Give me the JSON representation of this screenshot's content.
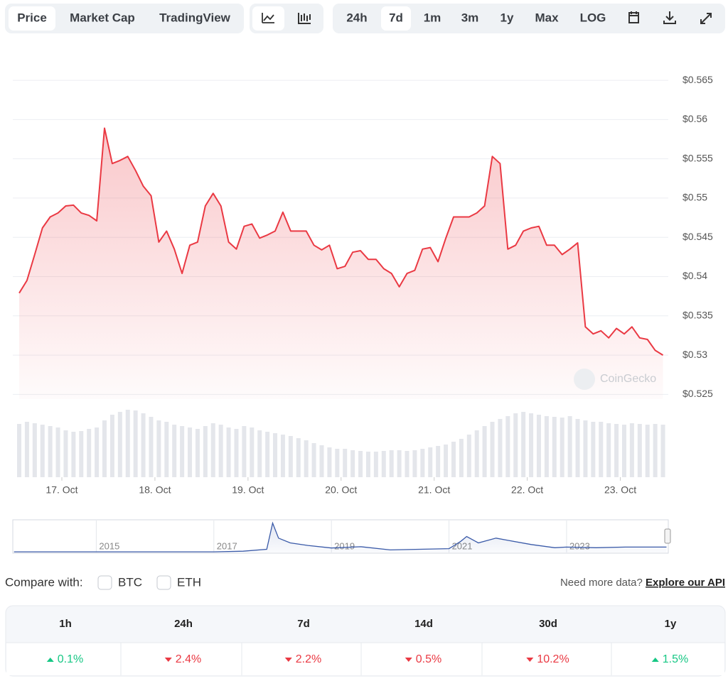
{
  "toolbar": {
    "tabs": [
      "Price",
      "Market Cap",
      "TradingView"
    ],
    "active_tab": 0,
    "ranges": [
      "24h",
      "7d",
      "1m",
      "3m",
      "1y",
      "Max",
      "LOG"
    ],
    "active_range": 1
  },
  "chart_data": {
    "type": "line",
    "color": "#ea3943",
    "x": [
      0,
      2,
      4,
      6,
      8,
      10,
      12,
      14,
      16,
      18,
      20,
      22,
      24,
      26,
      28,
      30,
      32,
      34,
      36,
      38,
      40,
      42,
      44,
      46,
      48,
      50,
      52,
      54,
      56,
      58,
      60,
      62,
      64,
      66,
      68,
      70,
      72,
      74,
      76,
      78,
      80,
      82,
      84,
      86,
      88,
      90,
      92,
      94,
      96,
      98,
      100,
      102,
      104,
      106,
      108,
      110,
      112,
      114,
      116,
      118,
      120,
      122,
      124,
      126,
      128,
      130,
      132,
      134,
      136,
      138,
      140,
      142,
      144,
      146,
      148,
      150,
      152,
      154,
      156,
      158,
      160,
      162,
      164,
      166
    ],
    "values": [
      0.5379,
      0.5395,
      0.5428,
      0.5462,
      0.5476,
      0.5481,
      0.549,
      0.5491,
      0.5481,
      0.5478,
      0.5471,
      0.5589,
      0.5544,
      0.5548,
      0.5553,
      0.5535,
      0.5515,
      0.5503,
      0.5444,
      0.5458,
      0.5435,
      0.5404,
      0.544,
      0.5444,
      0.549,
      0.5506,
      0.549,
      0.5444,
      0.5435,
      0.5464,
      0.5467,
      0.5449,
      0.5453,
      0.5458,
      0.5482,
      0.5458,
      0.5458,
      0.5458,
      0.544,
      0.5434,
      0.544,
      0.541,
      0.5413,
      0.5431,
      0.5433,
      0.5422,
      0.5422,
      0.541,
      0.5404,
      0.5387,
      0.5404,
      0.5408,
      0.5435,
      0.5437,
      0.5419,
      0.5449,
      0.5476,
      0.5476,
      0.5476,
      0.5481,
      0.549,
      0.5553,
      0.5544,
      0.5435,
      0.544,
      0.5458,
      0.5462,
      0.5464,
      0.544,
      0.544,
      0.5428,
      0.5435,
      0.5443,
      0.5336,
      0.5327,
      0.5331,
      0.5322,
      0.5334,
      0.5327,
      0.5336,
      0.5322,
      0.532,
      0.5306,
      0.53
    ],
    "volume": {
      "color": "#e4e6eb",
      "vlim": [
        0,
        100
      ],
      "values": [
        75,
        78,
        76,
        74,
        72,
        70,
        66,
        64,
        65,
        68,
        70,
        80,
        88,
        92,
        95,
        94,
        90,
        85,
        80,
        78,
        74,
        72,
        70,
        68,
        72,
        76,
        74,
        70,
        68,
        72,
        70,
        66,
        64,
        62,
        60,
        58,
        55,
        52,
        48,
        45,
        42,
        40,
        40,
        38,
        37,
        36,
        36,
        37,
        38,
        38,
        37,
        38,
        40,
        42,
        44,
        46,
        50,
        54,
        60,
        66,
        72,
        78,
        82,
        86,
        90,
        92,
        90,
        88,
        86,
        85,
        84,
        86,
        82,
        80,
        78,
        78,
        76,
        75,
        74,
        76,
        75,
        74,
        75,
        74
      ]
    },
    "xlim": [
      0,
      167
    ],
    "xticks": [
      {
        "value": 11,
        "label": "17. Oct"
      },
      {
        "value": 35,
        "label": "18. Oct"
      },
      {
        "value": 59,
        "label": "19. Oct"
      },
      {
        "value": 83,
        "label": "20. Oct"
      },
      {
        "value": 107,
        "label": "21. Oct"
      },
      {
        "value": 131,
        "label": "22. Oct"
      },
      {
        "value": 155,
        "label": "23. Oct"
      }
    ],
    "ylim": [
      0.5244,
      0.5698
    ],
    "yticks": [
      {
        "value": 0.525,
        "label": "$0.525"
      },
      {
        "value": 0.53,
        "label": "$0.53"
      },
      {
        "value": 0.535,
        "label": "$0.535"
      },
      {
        "value": 0.54,
        "label": "$0.54"
      },
      {
        "value": 0.545,
        "label": "$0.545"
      },
      {
        "value": 0.55,
        "label": "$0.55"
      },
      {
        "value": 0.555,
        "label": "$0.555"
      },
      {
        "value": 0.56,
        "label": "$0.56"
      },
      {
        "value": 0.565,
        "label": "$0.565"
      }
    ],
    "grid": true,
    "watermark": "CoinGecko"
  },
  "navigator": {
    "type": "line",
    "color": "#3a5aa8",
    "x": [
      2013.6,
      2017.0,
      2017.5,
      2017.9,
      2018.0,
      2018.1,
      2018.3,
      2018.6,
      2019.0,
      2019.5,
      2020.0,
      2020.5,
      2021.0,
      2021.2,
      2021.3,
      2021.5,
      2021.8,
      2022.0,
      2022.4,
      2022.8,
      2023.0,
      2023.5,
      2024.0,
      2024.7
    ],
    "values": [
      2,
      2,
      4,
      10,
      92,
      45,
      30,
      22,
      14,
      18,
      8,
      10,
      12,
      35,
      50,
      30,
      45,
      38,
      25,
      15,
      17,
      15,
      17,
      17
    ],
    "xlim": [
      2013.58,
      2024.73
    ],
    "ylim": [
      0,
      100
    ],
    "xticks": [
      2015,
      2017,
      2019,
      2021,
      2023
    ]
  },
  "compare": {
    "label": "Compare with:",
    "options": [
      "BTC",
      "ETH"
    ],
    "note": "Need more data?",
    "link": "Explore our API"
  },
  "table": {
    "headers": [
      "1h",
      "24h",
      "7d",
      "14d",
      "30d",
      "1y"
    ],
    "rows": [
      [
        "0.1%",
        "2.4%",
        "2.2%",
        "0.5%",
        "10.2%",
        "1.5%"
      ]
    ],
    "directions": [
      "up",
      "down",
      "down",
      "down",
      "down",
      "up"
    ]
  }
}
